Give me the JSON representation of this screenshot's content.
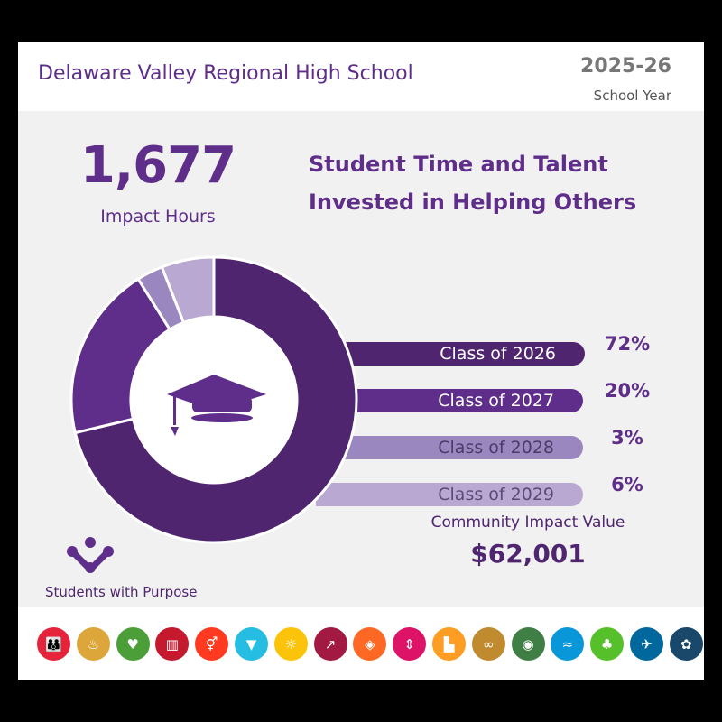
{
  "header": {
    "title": "Delaware Valley Regional High School",
    "year": "2025-26",
    "year_label": "School Year"
  },
  "impact": {
    "hours": "1,677",
    "hours_label": "Impact Hours"
  },
  "headline": [
    "Student Time and Talent",
    "Invested in Helping Others"
  ],
  "chart_data": {
    "type": "pie",
    "categories": [
      "Class of 2026",
      "Class of 2027",
      "Class of 2028",
      "Class of 2029"
    ],
    "values": [
      72,
      20,
      3,
      6
    ],
    "labels": [
      "72%",
      "20%",
      "3%",
      "6%"
    ],
    "colors": [
      "#4f2570",
      "#5f2e8a",
      "#9b87bf",
      "#b9a9d2"
    ],
    "donut": true,
    "center_icon": "graduation-cap-icon"
  },
  "community": {
    "label": "Community Impact Value",
    "value": "$62,001"
  },
  "brand": {
    "name": "Students with Purpose",
    "accent": "#5f2e8a"
  },
  "sdg_icons": [
    {
      "name": "no-poverty-icon",
      "color": "#e5243b",
      "glyph": "👪"
    },
    {
      "name": "zero-hunger-icon",
      "color": "#dda63a",
      "glyph": "♨"
    },
    {
      "name": "good-health-icon",
      "color": "#4c9f38",
      "glyph": "♥"
    },
    {
      "name": "quality-education-icon",
      "color": "#c5192d",
      "glyph": "▥"
    },
    {
      "name": "gender-equality-icon",
      "color": "#ff3a21",
      "glyph": "⚥"
    },
    {
      "name": "clean-water-icon",
      "color": "#26bde2",
      "glyph": "▼"
    },
    {
      "name": "clean-energy-icon",
      "color": "#fcc30b",
      "glyph": "☼"
    },
    {
      "name": "decent-work-icon",
      "color": "#a21942",
      "glyph": "↗"
    },
    {
      "name": "industry-innovation-icon",
      "color": "#fd6925",
      "glyph": "◈"
    },
    {
      "name": "reduced-inequalities-icon",
      "color": "#dd1367",
      "glyph": "⇕"
    },
    {
      "name": "sustainable-cities-icon",
      "color": "#fd9d24",
      "glyph": "▙"
    },
    {
      "name": "responsible-consumption-icon",
      "color": "#bf8b2e",
      "glyph": "∞"
    },
    {
      "name": "climate-action-icon",
      "color": "#3f7e44",
      "glyph": "◉"
    },
    {
      "name": "life-below-water-icon",
      "color": "#0a97d9",
      "glyph": "≈"
    },
    {
      "name": "life-on-land-icon",
      "color": "#56c02b",
      "glyph": "♣"
    },
    {
      "name": "peace-justice-icon",
      "color": "#00689d",
      "glyph": "✈"
    },
    {
      "name": "partnerships-icon",
      "color": "#19486a",
      "glyph": "✿"
    }
  ]
}
